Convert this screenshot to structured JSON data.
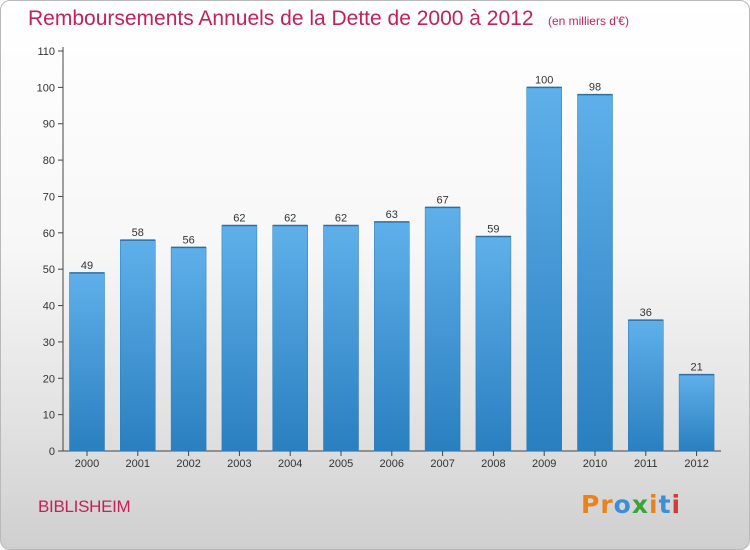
{
  "header": {
    "title": "Remboursements Annuels de la Dette de 2000 à 2012",
    "subtitle": "(en milliers d'€)"
  },
  "footer": {
    "city": "BIBLISHEIM",
    "brand": "Proxiti",
    "brand_colors": [
      "#e8831c",
      "#e8831c",
      "#3a8fd6",
      "#3aa33a",
      "#e8831c",
      "#3a8fd6",
      "#d43a3a"
    ]
  },
  "colors": {
    "bar_top": "#5fb0ea",
    "bar_bottom": "#2a7fbf",
    "title": "#c81e5a"
  },
  "chart_data": {
    "type": "bar",
    "title": "Remboursements Annuels de la Dette de 2000 à 2012",
    "subtitle": "(en milliers d'€)",
    "categories": [
      "2000",
      "2001",
      "2002",
      "2003",
      "2004",
      "2005",
      "2006",
      "2007",
      "2008",
      "2009",
      "2010",
      "2011",
      "2012"
    ],
    "values": [
      49,
      58,
      56,
      62,
      62,
      62,
      63,
      67,
      59,
      100,
      98,
      36,
      21
    ],
    "ylim": [
      0,
      110
    ],
    "yticks": [
      0,
      10,
      20,
      30,
      40,
      50,
      60,
      70,
      80,
      90,
      100,
      110
    ],
    "grid": false,
    "data_labels": true
  }
}
